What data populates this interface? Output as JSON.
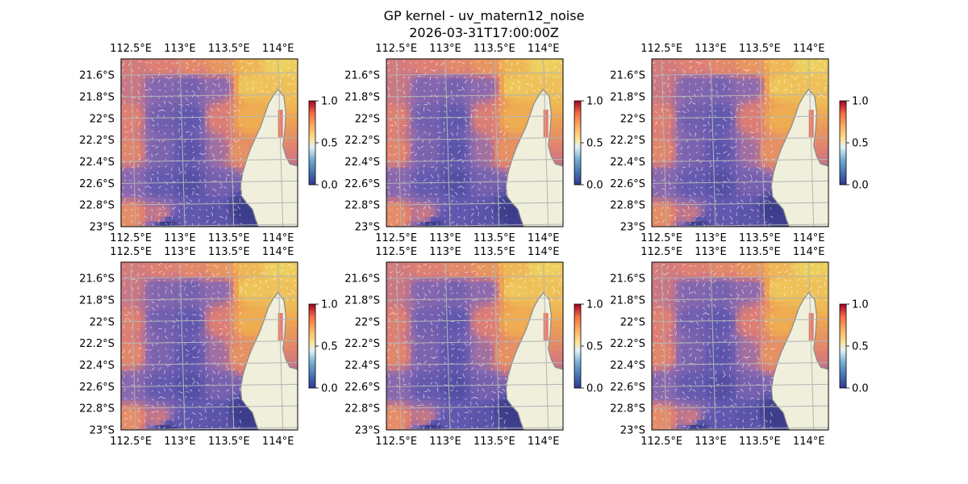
{
  "title": {
    "line1": "GP kernel - uv_matern12_noise",
    "line2": "2026-03-31T17:00:00Z"
  },
  "colors": {
    "land": "#efefdc",
    "ocean": "#9db9e0",
    "coast": "#8a8a8a",
    "grid": "#b4b4b4",
    "arrows": "#ffffff"
  },
  "chart_data": {
    "type": "heatmap",
    "layout": "2x3 grid of identical map panels with vector field overlay",
    "colormap": "RdYlBu_r",
    "clim": [
      0,
      1
    ],
    "colorbar_ticks": [
      "0.0",
      "0.5",
      "1.0"
    ],
    "xlim": [
      112.4,
      114.2
    ],
    "ylim": [
      -23.0,
      -21.45
    ],
    "xticks": [
      {
        "value": 112.5,
        "label": "112.5°E"
      },
      {
        "value": 113.0,
        "label": "113°E"
      },
      {
        "value": 113.5,
        "label": "113.5°E"
      },
      {
        "value": 114.0,
        "label": "114°E"
      }
    ],
    "yticks": [
      {
        "value": -21.6,
        "label": "21.6°S"
      },
      {
        "value": -21.8,
        "label": "21.8°S"
      },
      {
        "value": -22.0,
        "label": "22°S"
      },
      {
        "value": -22.2,
        "label": "22.2°S"
      },
      {
        "value": -22.4,
        "label": "22.4°S"
      },
      {
        "value": -22.6,
        "label": "22.6°S"
      },
      {
        "value": -22.8,
        "label": "22.8°S"
      },
      {
        "value": -23.0,
        "label": "23°S"
      }
    ],
    "grid": true,
    "panel_count": 6,
    "coastline": [
      [
        114.2,
        -23.0
      ],
      [
        113.8,
        -23.0
      ],
      [
        113.77,
        -22.93
      ],
      [
        113.74,
        -22.84
      ],
      [
        113.68,
        -22.78
      ],
      [
        113.63,
        -22.72
      ],
      [
        113.62,
        -22.62
      ],
      [
        113.64,
        -22.5
      ],
      [
        113.68,
        -22.38
      ],
      [
        113.72,
        -22.28
      ],
      [
        113.78,
        -22.16
      ],
      [
        113.82,
        -22.08
      ],
      [
        113.86,
        -21.98
      ],
      [
        113.9,
        -21.87
      ],
      [
        113.95,
        -21.79
      ],
      [
        114.0,
        -21.73
      ],
      [
        114.06,
        -21.8
      ],
      [
        114.08,
        -21.95
      ],
      [
        114.07,
        -22.1
      ],
      [
        114.05,
        -22.25
      ],
      [
        114.08,
        -22.35
      ],
      [
        114.12,
        -22.42
      ],
      [
        114.2,
        -22.44
      ]
    ],
    "field_points": [
      {
        "lon": 112.5,
        "lat": -21.5,
        "value": 0.58
      },
      {
        "lon": 112.8,
        "lat": -21.5,
        "value": 0.62
      },
      {
        "lon": 113.1,
        "lat": -21.5,
        "value": 0.66
      },
      {
        "lon": 113.4,
        "lat": -21.5,
        "value": 0.72
      },
      {
        "lon": 113.7,
        "lat": -21.5,
        "value": 0.85
      },
      {
        "lon": 114.0,
        "lat": -21.5,
        "value": 0.93
      },
      {
        "lon": 112.5,
        "lat": -21.7,
        "value": 0.55
      },
      {
        "lon": 112.8,
        "lat": -21.7,
        "value": 0.35
      },
      {
        "lon": 113.1,
        "lat": -21.7,
        "value": 0.3
      },
      {
        "lon": 113.4,
        "lat": -21.7,
        "value": 0.4
      },
      {
        "lon": 113.7,
        "lat": -21.7,
        "value": 0.9
      },
      {
        "lon": 114.0,
        "lat": -21.7,
        "value": 0.88
      },
      {
        "lon": 112.5,
        "lat": -22.0,
        "value": 0.62
      },
      {
        "lon": 112.8,
        "lat": -22.0,
        "value": 0.28
      },
      {
        "lon": 113.1,
        "lat": -22.0,
        "value": 0.2
      },
      {
        "lon": 113.4,
        "lat": -22.0,
        "value": 0.6
      },
      {
        "lon": 113.7,
        "lat": -22.0,
        "value": 0.82
      },
      {
        "lon": 112.5,
        "lat": -22.3,
        "value": 0.65
      },
      {
        "lon": 112.8,
        "lat": -22.3,
        "value": 0.32
      },
      {
        "lon": 113.1,
        "lat": -22.3,
        "value": 0.18
      },
      {
        "lon": 113.4,
        "lat": -22.3,
        "value": 0.45
      },
      {
        "lon": 113.6,
        "lat": -22.3,
        "value": 0.7
      },
      {
        "lon": 112.5,
        "lat": -22.6,
        "value": 0.38
      },
      {
        "lon": 112.8,
        "lat": -22.6,
        "value": 0.22
      },
      {
        "lon": 113.1,
        "lat": -22.6,
        "value": 0.15
      },
      {
        "lon": 113.4,
        "lat": -22.6,
        "value": 0.3
      },
      {
        "lon": 112.5,
        "lat": -22.9,
        "value": 0.68
      },
      {
        "lon": 112.8,
        "lat": -22.9,
        "value": 0.55
      },
      {
        "lon": 113.1,
        "lat": -22.9,
        "value": 0.2
      },
      {
        "lon": 113.4,
        "lat": -22.9,
        "value": 0.18
      },
      {
        "lon": 113.65,
        "lat": -22.85,
        "value": 0.05
      },
      {
        "lon": 112.85,
        "lat": -22.98,
        "value": 0.05
      }
    ]
  }
}
